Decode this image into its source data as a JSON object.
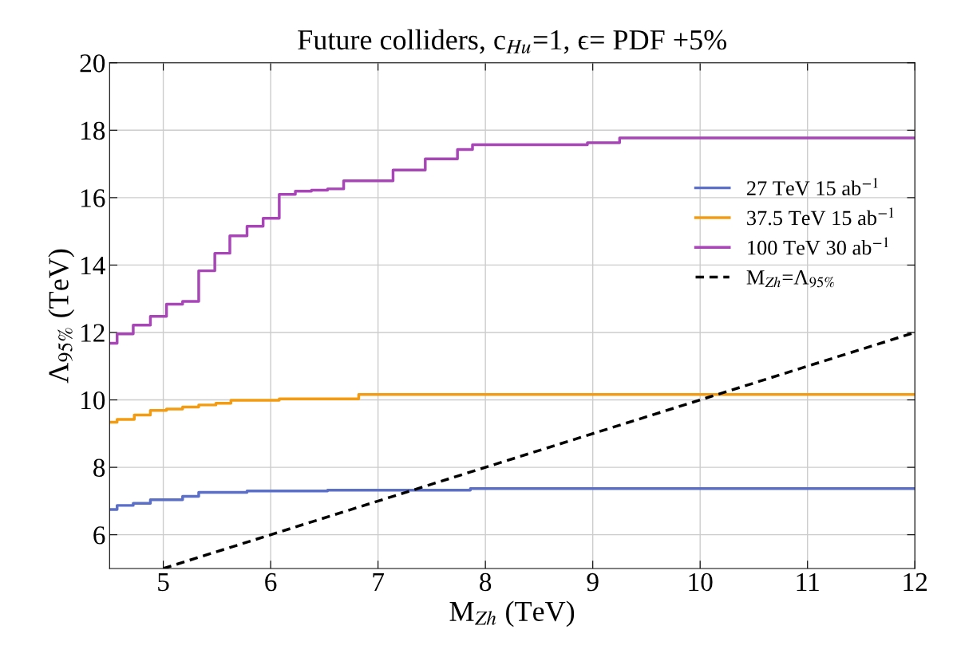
{
  "chart_data": {
    "type": "step",
    "title": "Future colliders, c$_{Hu}$=1, ϵ= PDF +5%",
    "xlabel": "M$_{Zh}$ (TeV)",
    "ylabel": "Λ$_{95%}$ (TeV)",
    "xlim": [
      4.5,
      12
    ],
    "ylim": [
      5,
      20
    ],
    "xticks": [
      5,
      6,
      7,
      8,
      9,
      10,
      11,
      12
    ],
    "yticks": [
      6,
      8,
      10,
      12,
      14,
      16,
      18,
      20
    ],
    "grid": true,
    "legend": "right",
    "series": [
      {
        "name": "27 TeV 15 ab$^{−1}$",
        "color": "#5b6fc9",
        "x": [
          4.5,
          4.57,
          4.72,
          4.88,
          5.18,
          5.33,
          5.78,
          6.53,
          7.86,
          12
        ],
        "values": [
          6.75,
          6.87,
          6.93,
          7.04,
          7.14,
          7.26,
          7.3,
          7.32,
          7.37,
          7.37
        ]
      },
      {
        "name": "37.5 TeV 15 ab$^{−1}$",
        "color": "#f39c12",
        "x": [
          4.5,
          4.57,
          4.73,
          4.88,
          5.03,
          5.18,
          5.33,
          5.49,
          5.63,
          6.08,
          6.82,
          12
        ],
        "values": [
          9.34,
          9.42,
          9.55,
          9.69,
          9.73,
          9.79,
          9.85,
          9.9,
          9.99,
          10.03,
          10.16,
          10.16
        ]
      },
      {
        "name": "100 TeV 30 ab$^{−1}$",
        "color": "#a846b8",
        "x": [
          4.5,
          4.57,
          4.72,
          4.88,
          5.03,
          5.18,
          5.33,
          5.48,
          5.62,
          5.78,
          5.93,
          6.08,
          6.23,
          6.38,
          6.53,
          6.68,
          7.14,
          7.44,
          7.74,
          7.88,
          8.95,
          9.25,
          12
        ],
        "values": [
          11.68,
          11.96,
          12.22,
          12.48,
          12.84,
          12.92,
          13.83,
          14.35,
          14.87,
          15.15,
          15.39,
          16.1,
          16.19,
          16.22,
          16.26,
          16.5,
          16.82,
          17.15,
          17.43,
          17.57,
          17.63,
          17.77,
          17.77
        ]
      },
      {
        "name": "M$_{Zh}$=Λ$_{95%}$",
        "type": "line",
        "line_style": "dashed",
        "color": "#000000",
        "x": [
          5,
          12
        ],
        "values": [
          5,
          12
        ]
      }
    ]
  }
}
